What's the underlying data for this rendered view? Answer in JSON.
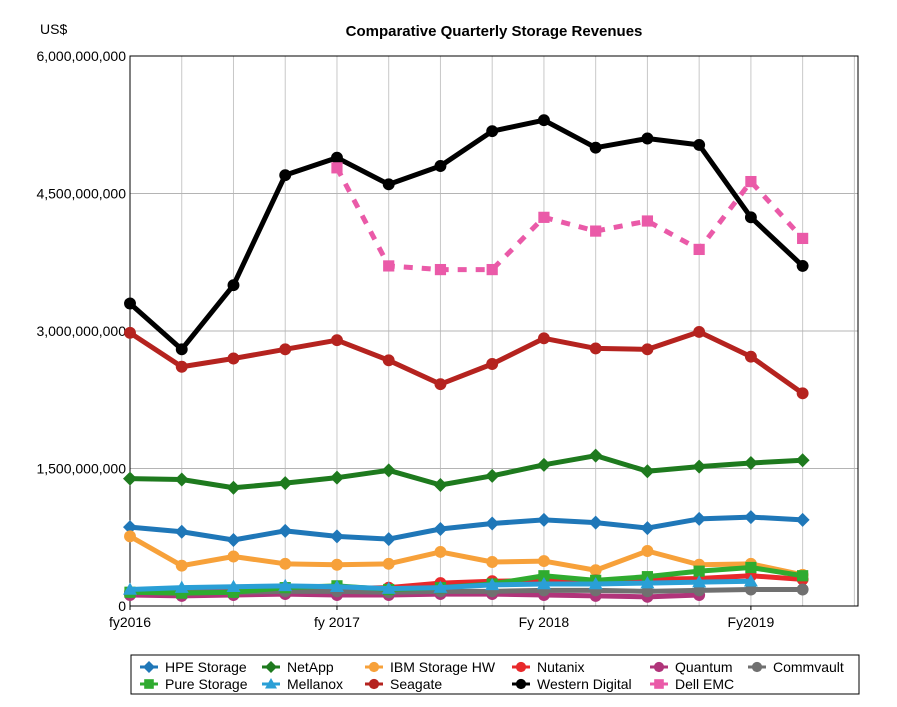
{
  "chart_data": {
    "type": "line",
    "title": "Comparative Quarterly Storage Revenues",
    "ylabel": "US$",
    "xlabel": "",
    "ylim": [
      0,
      6000000000
    ],
    "yticks": [
      0,
      1500000000,
      3000000000,
      4500000000,
      6000000000
    ],
    "ytick_labels": [
      "0",
      "1,500,000,000",
      "3,000,000,000",
      "4,500,000,000",
      "6,000,000,000"
    ],
    "x_tick_labels": [
      {
        "index": 0,
        "label": "fy2016"
      },
      {
        "index": 4,
        "label": "fy 2017"
      },
      {
        "index": 8,
        "label": "Fy 2018"
      },
      {
        "index": 12,
        "label": "Fy2019"
      }
    ],
    "num_quarters": 15,
    "grid": true,
    "legend_position": "bottom",
    "series": [
      {
        "name": "HPE Storage",
        "color": "#1f77b8",
        "marker": "diamond",
        "dashed": false,
        "values": [
          860000000,
          810000000,
          720000000,
          820000000,
          760000000,
          730000000,
          840000000,
          900000000,
          940000000,
          910000000,
          850000000,
          950000000,
          970000000,
          940000000
        ]
      },
      {
        "name": "NetApp",
        "color": "#1e7a1e",
        "marker": "diamond",
        "dashed": false,
        "values": [
          1390000000,
          1380000000,
          1290000000,
          1340000000,
          1400000000,
          1480000000,
          1320000000,
          1420000000,
          1540000000,
          1640000000,
          1470000000,
          1520000000,
          1560000000,
          1590000000
        ]
      },
      {
        "name": "IBM Storage HW",
        "color": "#f7a13a",
        "marker": "circle",
        "dashed": false,
        "values": [
          760000000,
          440000000,
          540000000,
          460000000,
          450000000,
          460000000,
          590000000,
          480000000,
          490000000,
          390000000,
          600000000,
          450000000,
          460000000,
          340000000
        ]
      },
      {
        "name": "Nutanix",
        "color": "#e8292b",
        "marker": "circle",
        "dashed": false,
        "values": [
          140000000,
          150000000,
          160000000,
          180000000,
          190000000,
          200000000,
          250000000,
          270000000,
          280000000,
          280000000,
          290000000,
          300000000,
          330000000,
          290000000
        ]
      },
      {
        "name": "Quantum",
        "color": "#b0347a",
        "marker": "circle",
        "dashed": false,
        "values": [
          120000000,
          110000000,
          120000000,
          130000000,
          120000000,
          120000000,
          130000000,
          130000000,
          120000000,
          110000000,
          100000000,
          120000000
        ]
      },
      {
        "name": "Commvault",
        "color": "#707070",
        "marker": "circle",
        "dashed": false,
        "values": [
          150000000,
          150000000,
          150000000,
          160000000,
          160000000,
          150000000,
          160000000,
          160000000,
          170000000,
          170000000,
          160000000,
          170000000,
          180000000,
          180000000
        ]
      },
      {
        "name": "Pure Storage",
        "color": "#2fab2f",
        "marker": "square",
        "dashed": false,
        "values": [
          150000000,
          140000000,
          150000000,
          200000000,
          220000000,
          180000000,
          200000000,
          240000000,
          330000000,
          280000000,
          320000000,
          380000000,
          420000000,
          330000000
        ]
      },
      {
        "name": "Mellanox",
        "color": "#2a9fd6",
        "marker": "triangle",
        "dashed": false,
        "values": [
          180000000,
          200000000,
          210000000,
          220000000,
          210000000,
          190000000,
          200000000,
          230000000,
          240000000,
          240000000,
          250000000,
          260000000,
          270000000
        ]
      },
      {
        "name": "Seagate",
        "color": "#b5231f",
        "marker": "circle",
        "dashed": false,
        "values": [
          2980000000,
          2610000000,
          2700000000,
          2800000000,
          2900000000,
          2680000000,
          2420000000,
          2640000000,
          2920000000,
          2810000000,
          2800000000,
          2990000000,
          2720000000,
          2320000000
        ]
      },
      {
        "name": "Western Digital",
        "color": "#000000",
        "marker": "circle",
        "dashed": false,
        "values": [
          3300000000,
          2800000000,
          3500000000,
          4700000000,
          4890000000,
          4600000000,
          4800000000,
          5180000000,
          5300000000,
          5000000000,
          5100000000,
          5030000000,
          4240000000,
          3710000000
        ]
      },
      {
        "name": "Dell EMC",
        "color": "#ea5aa8",
        "marker": "square",
        "dashed": true,
        "start_index": 4,
        "values": [
          4780000000,
          3710000000,
          3670000000,
          3670000000,
          4240000000,
          4090000000,
          4200000000,
          3890000000,
          4630000000,
          4010000000
        ]
      }
    ],
    "legend_rows": [
      [
        "HPE Storage",
        "NetApp",
        "IBM Storage HW",
        "Nutanix",
        "Quantum",
        "Commvault"
      ],
      [
        "Pure Storage",
        "Mellanox",
        "Seagate",
        "Western Digital",
        "Dell EMC"
      ]
    ]
  }
}
